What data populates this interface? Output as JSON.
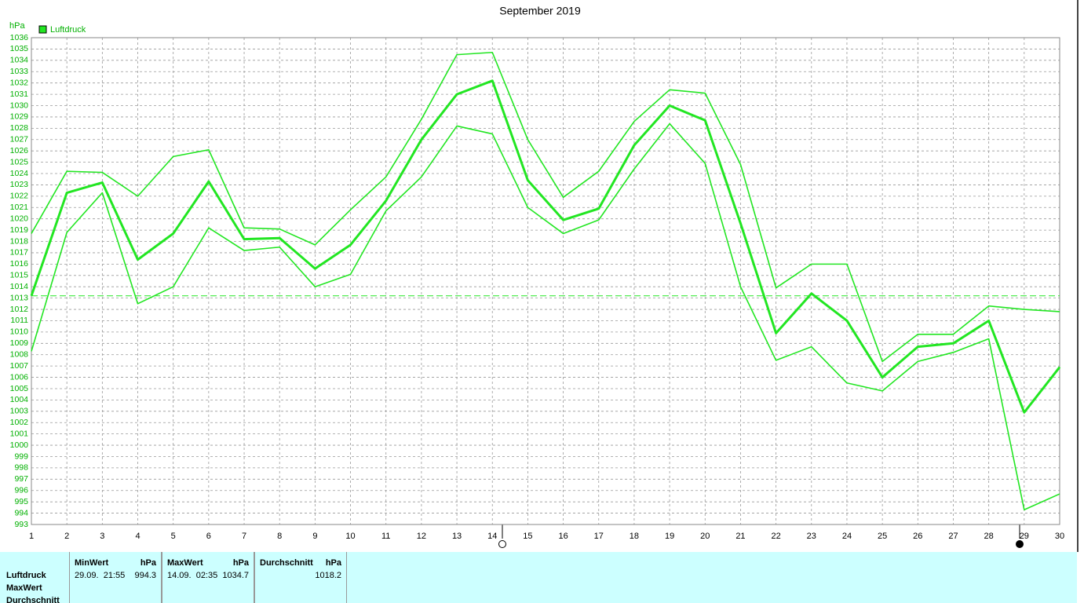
{
  "chart_data": {
    "type": "line",
    "title": "September 2019",
    "y_label": "hPa",
    "x": [
      1,
      2,
      3,
      4,
      5,
      6,
      7,
      8,
      9,
      10,
      11,
      12,
      13,
      14,
      15,
      16,
      17,
      18,
      19,
      20,
      21,
      22,
      23,
      24,
      25,
      26,
      27,
      28,
      29,
      30
    ],
    "xlim": [
      1,
      30
    ],
    "series": [
      {
        "name": "Luftdruck",
        "color": "#22e622",
        "width": 3,
        "values": [
          1013.2,
          1022.3,
          1023.2,
          1016.4,
          1018.7,
          1023.3,
          1018.2,
          1018.3,
          1015.6,
          1017.7,
          1021.6,
          1027.0,
          1031.0,
          1032.2,
          1023.4,
          1019.9,
          1020.9,
          1026.5,
          1030.0,
          1028.7,
          1019.6,
          1009.9,
          1013.4,
          1011.0,
          1006.0,
          1008.7,
          1009.0,
          1011.0,
          1002.9,
          1006.9
        ]
      },
      {
        "color": "#22e622",
        "width": 1.6,
        "values": [
          1018.7,
          1024.2,
          1024.1,
          1022.0,
          1025.5,
          1026.1,
          1019.2,
          1019.1,
          1017.7,
          1020.8,
          1023.7,
          1028.8,
          1034.5,
          1034.7,
          1027.0,
          1021.9,
          1024.2,
          1028.6,
          1031.4,
          1031.1,
          1024.8,
          1013.9,
          1016.0,
          1016.0,
          1007.4,
          1009.8,
          1009.8,
          1012.3,
          1012.0,
          1011.8
        ]
      },
      {
        "color": "#22e622",
        "width": 1.6,
        "values": [
          1008.3,
          1018.8,
          1022.3,
          1012.5,
          1014.0,
          1019.2,
          1017.2,
          1017.5,
          1014.0,
          1015.1,
          1020.7,
          1023.7,
          1028.2,
          1027.5,
          1021.0,
          1018.7,
          1019.9,
          1024.4,
          1028.4,
          1024.9,
          1014.0,
          1007.5,
          1008.7,
          1005.5,
          1004.8,
          1007.4,
          1008.2,
          1009.4,
          994.3,
          995.7
        ]
      }
    ],
    "reference_line": 1013.2,
    "ylim": [
      993,
      1036
    ],
    "yticks": [
      993,
      994,
      995,
      996,
      997,
      998,
      999,
      1000,
      1001,
      1002,
      1003,
      1004,
      1005,
      1006,
      1007,
      1008,
      1009,
      1010,
      1011,
      1012,
      1013,
      1014,
      1015,
      1016,
      1017,
      1018,
      1019,
      1020,
      1021,
      1022,
      1023,
      1024,
      1025,
      1026,
      1027,
      1028,
      1029,
      1030,
      1031,
      1032,
      1033,
      1034,
      1035,
      1036
    ],
    "grid": true
  },
  "summary": {
    "rows": [
      "Luftdruck",
      "MaxWert",
      "Durchschnitt"
    ],
    "columns": [
      {
        "title": "MinWert",
        "unit": "hPa",
        "date": "29.09.  21:55",
        "value": "994.3"
      },
      {
        "title": "MaxWert",
        "unit": "hPa",
        "date": "14.09.  02:35",
        "value": "1034.7"
      },
      {
        "title": "Durchschnitt",
        "unit": "hPa",
        "value": "1018.2"
      }
    ]
  }
}
